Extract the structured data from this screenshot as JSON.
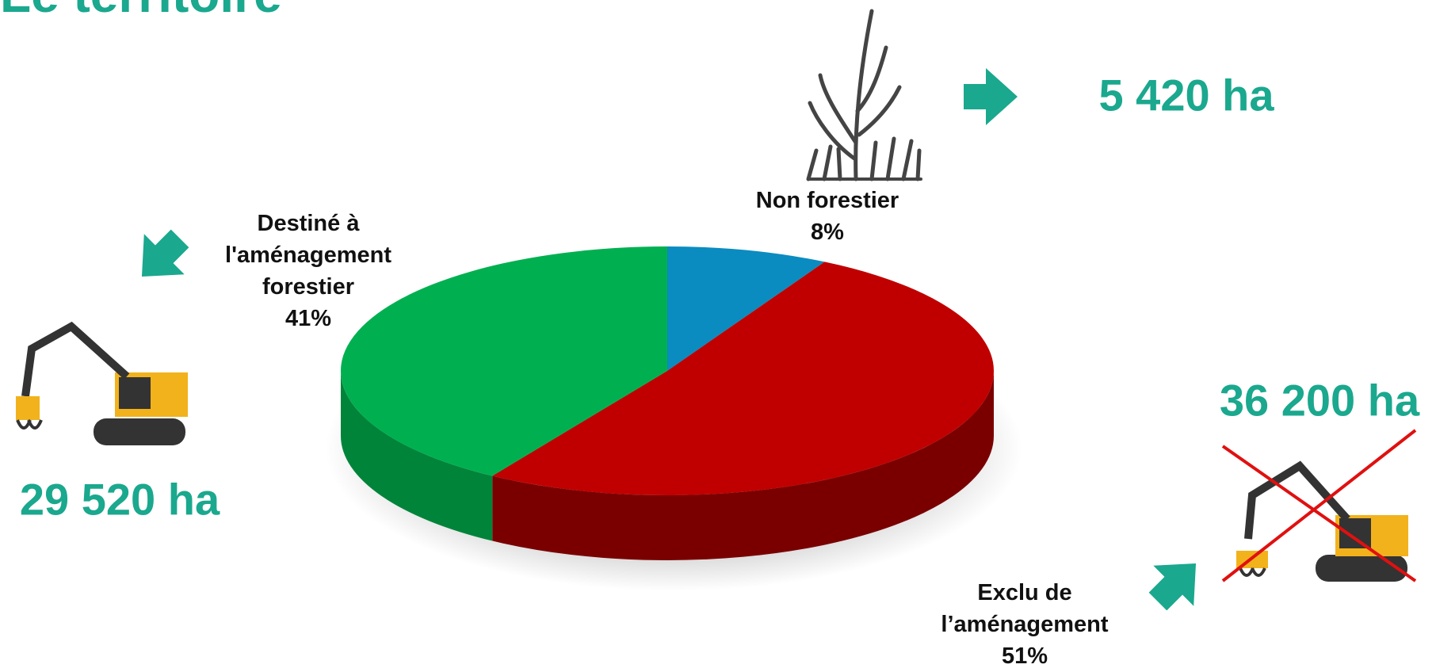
{
  "chart_data": {
    "type": "pie3d",
    "title": "Le territoire",
    "categories": [
      "Non forestier",
      "Exclu de l’aménagement",
      "Destiné à l'aménagement forestier"
    ],
    "values": [
      8,
      51,
      41
    ],
    "value_labels": [
      "8%",
      "51%",
      "41%"
    ],
    "colors": [
      "#0a8cc0",
      "#c00000",
      "#00b050"
    ],
    "side_colors": [
      "#066a92",
      "#7a0000",
      "#00843a"
    ],
    "area_labels": [
      "5 420 ha",
      "36 200 ha",
      "29 520 ha"
    ]
  }
}
